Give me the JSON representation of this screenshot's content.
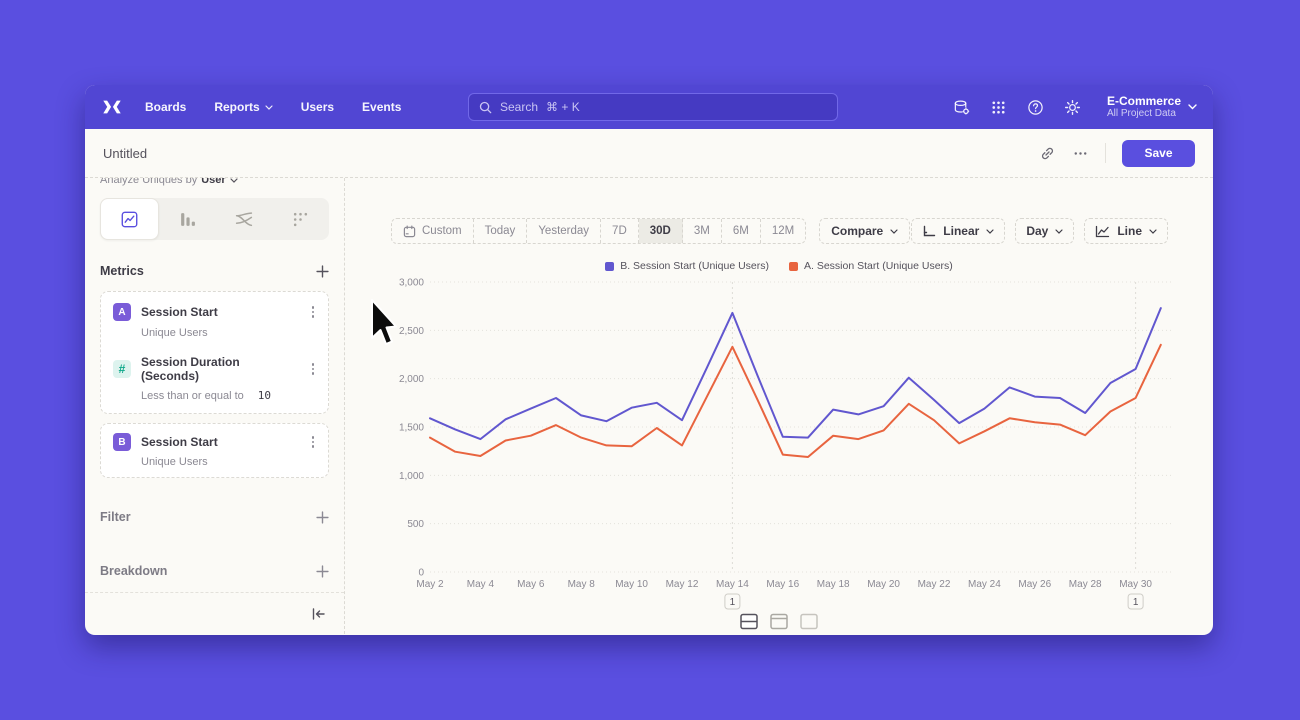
{
  "nav": {
    "links": [
      {
        "label": "Boards",
        "chevron": false
      },
      {
        "label": "Reports",
        "chevron": true
      },
      {
        "label": "Users",
        "chevron": false
      },
      {
        "label": "Events",
        "chevron": false
      }
    ],
    "search_label": "Search",
    "search_shortcut": "⌘ + K",
    "project_name": "E-Commerce",
    "project_scope": "All Project Data"
  },
  "header": {
    "title": "Untitled",
    "save_label": "Save",
    "more_label": "⋯"
  },
  "sidebar": {
    "analyze_prefix": "Analyze Uniques by",
    "analyze_value": "User",
    "metrics_title": "Metrics",
    "metrics": [
      {
        "badge": "A",
        "title": "Session Start",
        "subtitle": "Unique Users"
      },
      {
        "badge": "#",
        "title": "Session Duration (Seconds)",
        "subtitle": "Less than or equal to",
        "value": "10"
      },
      {
        "badge": "B",
        "title": "Session Start",
        "subtitle": "Unique Users"
      }
    ],
    "sections": [
      {
        "label": "Filter"
      },
      {
        "label": "Breakdown"
      }
    ]
  },
  "toolbar": {
    "ranges": [
      {
        "label": "Custom",
        "icon": "calendar"
      },
      {
        "label": "Today"
      },
      {
        "label": "Yesterday"
      },
      {
        "label": "7D"
      },
      {
        "label": "30D"
      },
      {
        "label": "3M"
      },
      {
        "label": "6M"
      },
      {
        "label": "12M"
      }
    ],
    "active_range": "30D",
    "compare_label": "Compare",
    "controls": [
      {
        "label": "Linear",
        "icon": "axis"
      },
      {
        "label": "Day"
      },
      {
        "label": "Line",
        "icon": "line"
      }
    ]
  },
  "chart_data": {
    "type": "line",
    "x": [
      "May 2",
      "May 3",
      "May 4",
      "May 5",
      "May 6",
      "May 7",
      "May 8",
      "May 9",
      "May 10",
      "May 11",
      "May 12",
      "May 13",
      "May 14",
      "May 15",
      "May 16",
      "May 17",
      "May 18",
      "May 19",
      "May 20",
      "May 21",
      "May 22",
      "May 23",
      "May 24",
      "May 25",
      "May 26",
      "May 27",
      "May 28",
      "May 29",
      "May 30",
      "May 31"
    ],
    "x_tick_every": 2,
    "series": [
      {
        "name": "B. Session Start (Unique Users)",
        "color": "#6157cf",
        "values": [
          1590,
          1475,
          1375,
          1580,
          1690,
          1800,
          1620,
          1560,
          1700,
          1750,
          1570,
          2120,
          2680,
          2030,
          1400,
          1390,
          1680,
          1630,
          1715,
          2010,
          1780,
          1540,
          1690,
          1910,
          1815,
          1800,
          1645,
          1955,
          2100,
          2730
        ]
      },
      {
        "name": "A. Session Start (Unique Users)",
        "color": "#e8643f",
        "values": [
          1390,
          1245,
          1200,
          1360,
          1410,
          1520,
          1390,
          1310,
          1300,
          1490,
          1310,
          1820,
          2330,
          1780,
          1215,
          1190,
          1410,
          1375,
          1465,
          1740,
          1570,
          1330,
          1455,
          1590,
          1550,
          1525,
          1415,
          1660,
          1800,
          2350
        ]
      }
    ],
    "ylim": [
      0,
      3000
    ],
    "yticks": [
      0,
      500,
      1000,
      1500,
      2000,
      2500,
      3000
    ],
    "grid": "horizontal-dotted",
    "legend_position": "top-center",
    "annotations": [
      {
        "x": "May 14",
        "label": "1"
      },
      {
        "x": "May 30",
        "label": "1"
      }
    ]
  },
  "icons": {
    "nav_right": [
      "data-connections-icon",
      "apps-grid-icon",
      "help-icon",
      "settings-gear-icon"
    ],
    "report_tabs": [
      "insights-icon",
      "funnels-icon",
      "flows-icon",
      "retention-icon"
    ],
    "view_toggles": [
      "chart-and-table-view-icon",
      "chart-top-view-icon",
      "panel-view-icon"
    ]
  },
  "colors": {
    "background": "#5a4fe0",
    "navbar": "#5146d3",
    "accent": "#5a4fdf",
    "series_b": "#6157cf",
    "series_a": "#e8643f",
    "badge_purple": "#7a5cd8",
    "badge_teal": "#0da789"
  }
}
